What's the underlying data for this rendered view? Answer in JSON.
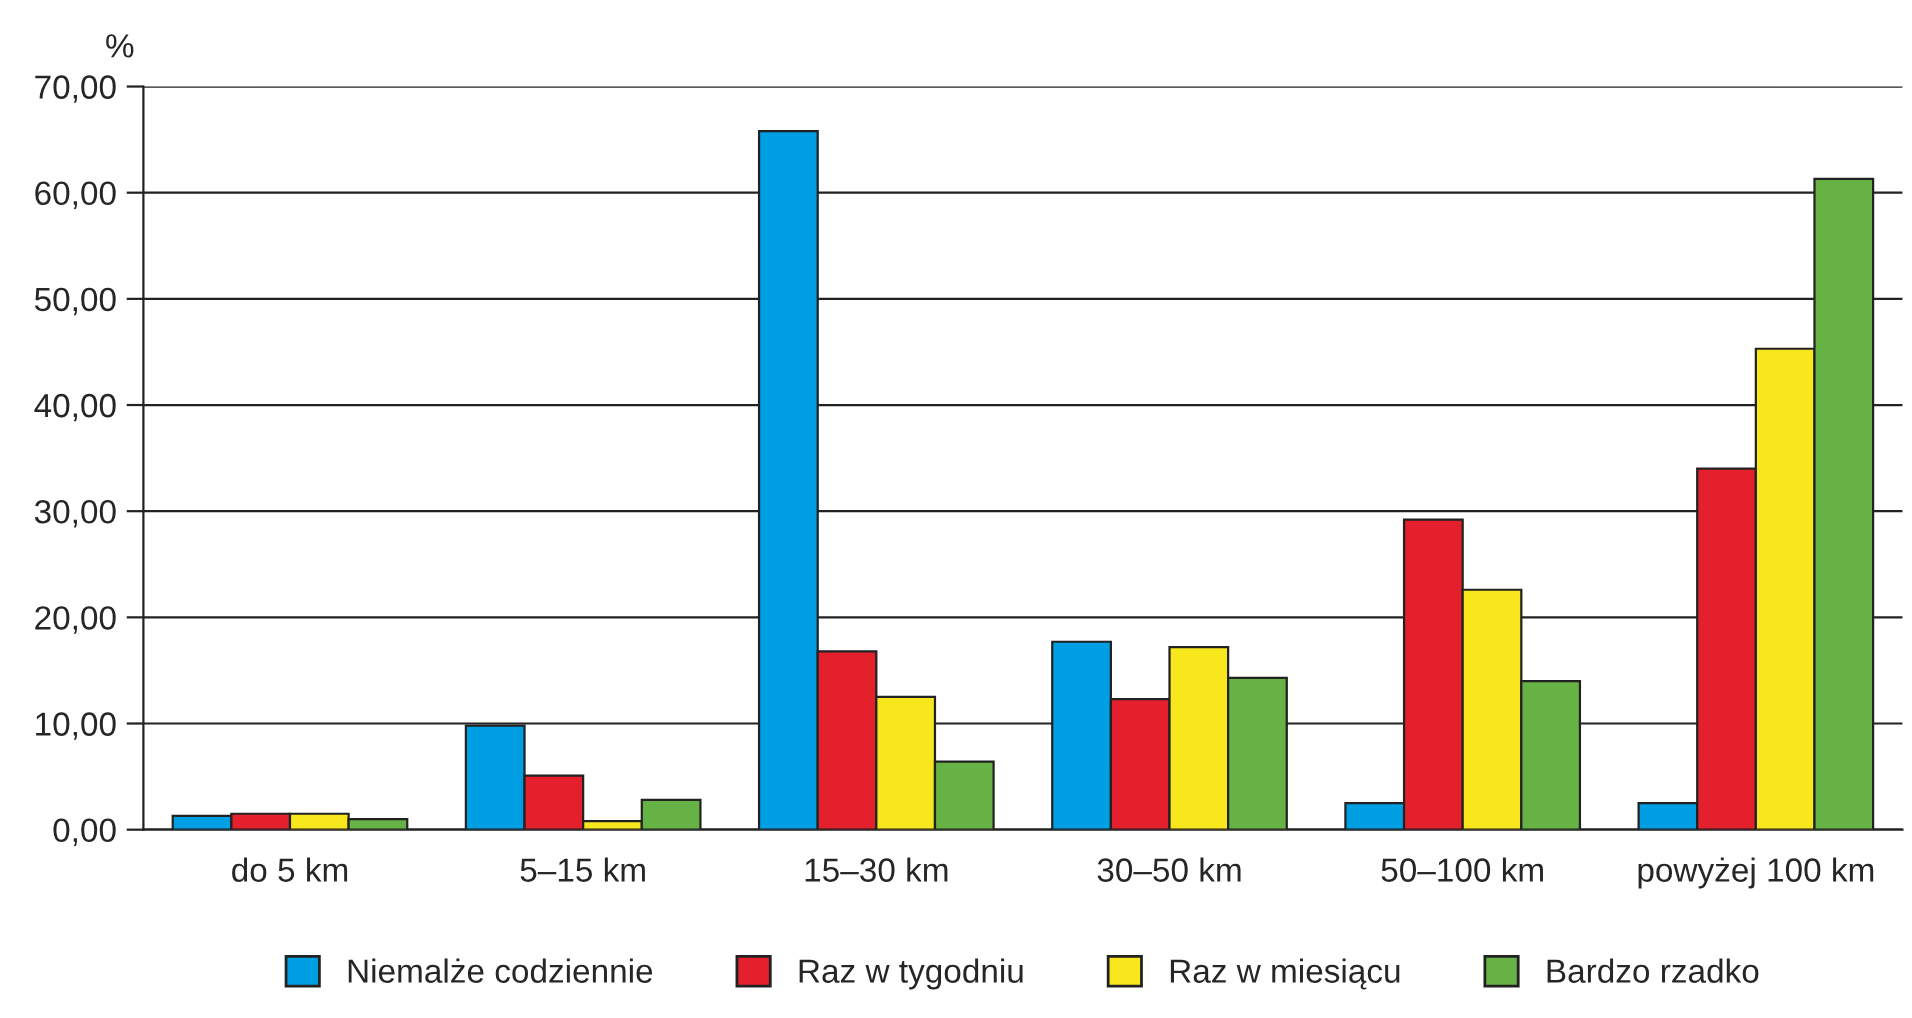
{
  "chart_data": {
    "type": "bar",
    "ylabel": "%",
    "categories": [
      "do 5 km",
      "5–15 km",
      "15–30 km",
      "30–50 km",
      "50–100 km",
      "powyżej 100 km"
    ],
    "series": [
      {
        "name": "Niemalże codziennie",
        "color": "#009fe3",
        "values": [
          1.3,
          9.8,
          65.8,
          17.7,
          2.5,
          2.5
        ]
      },
      {
        "name": "Raz w tygodniu",
        "color": "#e3202c",
        "values": [
          1.5,
          5.1,
          16.8,
          12.3,
          29.2,
          34.0
        ]
      },
      {
        "name": "Raz w miesiącu",
        "color": "#f8e71c",
        "values": [
          1.5,
          0.8,
          12.5,
          17.2,
          22.6,
          45.3
        ]
      },
      {
        "name": "Bardzo rzadko",
        "color": "#66b245",
        "values": [
          1.0,
          2.8,
          6.4,
          14.3,
          14.0,
          61.3
        ]
      }
    ],
    "ylim": [
      0,
      70
    ],
    "yticks": [
      {
        "value": 0,
        "label": "0,00"
      },
      {
        "value": 10,
        "label": "10,00"
      },
      {
        "value": 20,
        "label": "20,00"
      },
      {
        "value": 30,
        "label": "30,00"
      },
      {
        "value": 40,
        "label": "40,00"
      },
      {
        "value": 50,
        "label": "50,00"
      },
      {
        "value": 60,
        "label": "60,00"
      },
      {
        "value": 70,
        "label": "70,00"
      }
    ],
    "grid": "y",
    "legend": "bottom"
  }
}
